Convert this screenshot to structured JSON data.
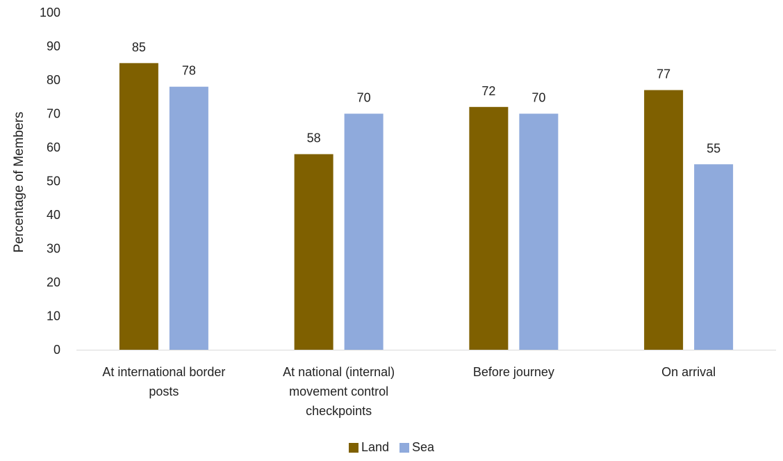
{
  "colors": {
    "land": "#7f6000",
    "sea": "#8faadc",
    "axis": "#d9d9d9"
  },
  "chart_data": {
    "type": "bar",
    "title": "",
    "xlabel": "",
    "ylabel": "Percentage of Members",
    "ylim": [
      0,
      100
    ],
    "ytick_step": 10,
    "grid": false,
    "legend_position": "bottom",
    "categories": [
      [
        "At international border",
        "posts"
      ],
      [
        "At national (internal)",
        "movement control",
        "checkpoints"
      ],
      [
        "Before journey"
      ],
      [
        "On arrival"
      ]
    ],
    "series": [
      {
        "name": "Land",
        "color": "#7f6000",
        "values": [
          85,
          58,
          72,
          77
        ]
      },
      {
        "name": "Sea",
        "color": "#8faadc",
        "values": [
          78,
          70,
          70,
          55
        ]
      }
    ],
    "value_labels": [
      [
        "85",
        "58",
        "72",
        "77"
      ],
      [
        "78",
        "70",
        "70",
        "55"
      ]
    ],
    "yticks": [
      "0",
      "10",
      "20",
      "30",
      "40",
      "50",
      "60",
      "70",
      "80",
      "90",
      "100"
    ]
  }
}
